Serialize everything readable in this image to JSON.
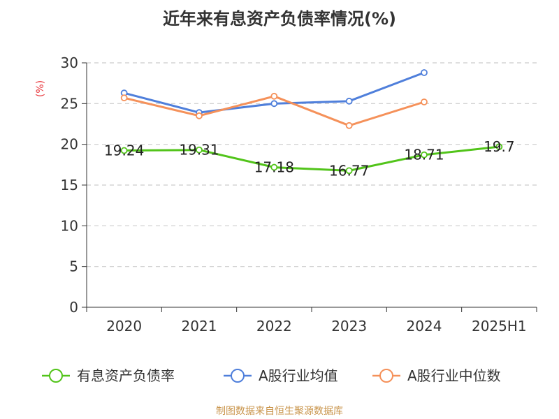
{
  "chart_data": {
    "type": "line",
    "title": "近年来有息资产负债率情况(%)",
    "ylabel": "(%)",
    "xlabel": "",
    "ylim": [
      0,
      30
    ],
    "yticks": [
      0,
      5,
      10,
      15,
      20,
      25,
      30
    ],
    "categories": [
      "2020",
      "2021",
      "2022",
      "2023",
      "2024",
      "2025H1"
    ],
    "grid": "horizontal-dashed",
    "legend_position": "bottom",
    "series": [
      {
        "name": "有息资产负债率",
        "color": "#52c41a",
        "values": [
          19.24,
          19.31,
          17.18,
          16.77,
          18.71,
          19.7
        ],
        "labels": [
          "19.24",
          "19.31",
          "17.18",
          "16.77",
          "18.71",
          "19.7"
        ]
      },
      {
        "name": "A股行业均值",
        "color": "#4f7fdb",
        "values": [
          26.3,
          23.9,
          25.0,
          25.3,
          28.8,
          null
        ]
      },
      {
        "name": "A股行业中位数",
        "color": "#f5915a",
        "values": [
          25.7,
          23.5,
          25.9,
          22.3,
          25.2,
          null
        ]
      }
    ]
  },
  "source": "制图数据来自恒生聚源数据库"
}
